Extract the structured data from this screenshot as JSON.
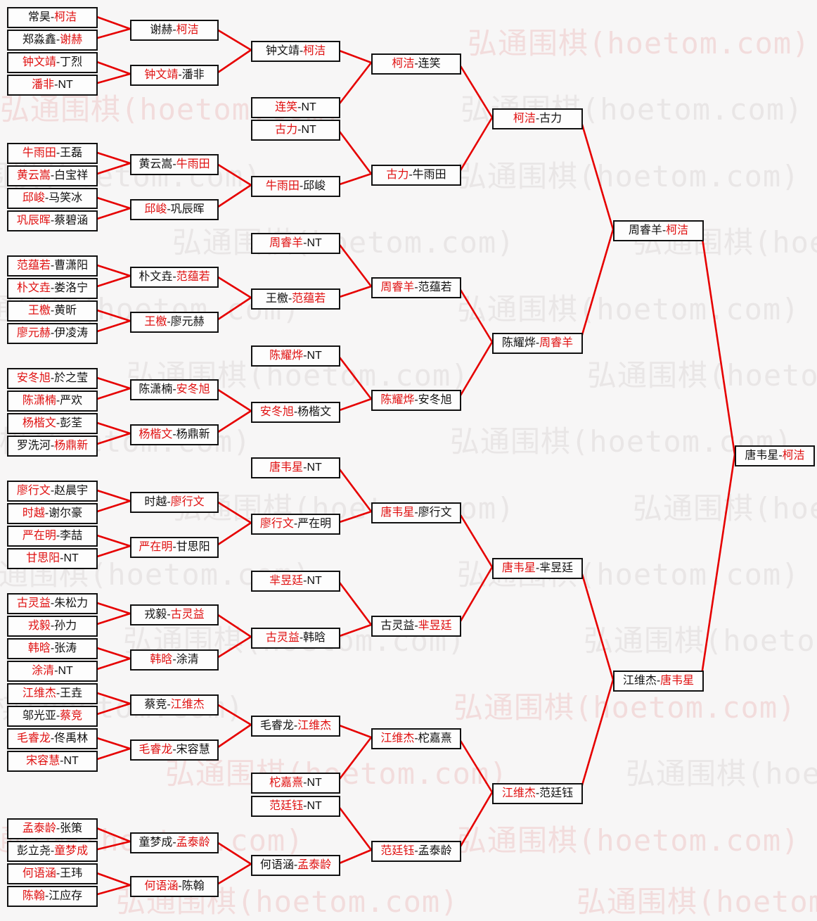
{
  "watermark": {
    "text": "弘通围棋(hoetom.com)",
    "color_gray": "#e9e6e6",
    "color_pink": "#f2dcdc"
  },
  "colors": {
    "winner_red": "#e01010",
    "line_red": "#e60000",
    "box_border": "#111111"
  },
  "bracket": {
    "rounds": [
      {
        "name": "round-1",
        "matches": [
          {
            "a": "常昊",
            "b": "柯洁",
            "red": "b"
          },
          {
            "a": "郑淼鑫",
            "b": "谢赫",
            "red": "b"
          },
          {
            "a": "钟文靖",
            "b": "丁烈",
            "red": "a"
          },
          {
            "a": "潘非",
            "b": "NT",
            "red": "a"
          },
          {
            "a": "牛雨田",
            "b": "王磊",
            "red": "a"
          },
          {
            "a": "黄云嵩",
            "b": "白宝祥",
            "red": "a"
          },
          {
            "a": "邱峻",
            "b": "马笑冰",
            "red": "a"
          },
          {
            "a": "巩辰晖",
            "b": "蔡碧涵",
            "red": "a"
          },
          {
            "a": "范蕴若",
            "b": "曹潇阳",
            "red": "a"
          },
          {
            "a": "朴文垚",
            "b": "娄洛宁",
            "red": "a"
          },
          {
            "a": "王檄",
            "b": "黄昕",
            "red": "a"
          },
          {
            "a": "廖元赫",
            "b": "伊凌涛",
            "red": "a"
          },
          {
            "a": "安冬旭",
            "b": "於之莹",
            "red": "a"
          },
          {
            "a": "陈潇楠",
            "b": "严欢",
            "red": "a"
          },
          {
            "a": "杨楷文",
            "b": "彭荃",
            "red": "a"
          },
          {
            "a": "罗洗河",
            "b": "杨鼎新",
            "red": "b"
          },
          {
            "a": "廖行文",
            "b": "赵晨宇",
            "red": "a"
          },
          {
            "a": "时越",
            "b": "谢尔豪",
            "red": "a"
          },
          {
            "a": "严在明",
            "b": "李喆",
            "red": "a"
          },
          {
            "a": "甘思阳",
            "b": "NT",
            "red": "a"
          },
          {
            "a": "古灵益",
            "b": "朱松力",
            "red": "a"
          },
          {
            "a": "戎毅",
            "b": "孙力",
            "red": "a"
          },
          {
            "a": "韩晗",
            "b": "张涛",
            "red": "a"
          },
          {
            "a": "涂清",
            "b": "NT",
            "red": "a"
          },
          {
            "a": "江维杰",
            "b": "王垚",
            "red": "a"
          },
          {
            "a": "邬光亚",
            "b": "蔡竞",
            "red": "b"
          },
          {
            "a": "毛睿龙",
            "b": "佟禹林",
            "red": "a"
          },
          {
            "a": "宋容慧",
            "b": "NT",
            "red": "a"
          },
          {
            "a": "孟泰龄",
            "b": "张策",
            "red": "a"
          },
          {
            "a": "彭立尧",
            "b": "童梦成",
            "red": "b"
          },
          {
            "a": "何语涵",
            "b": "王玮",
            "red": "a"
          },
          {
            "a": "陈翰",
            "b": "江应存",
            "red": "a"
          }
        ]
      },
      {
        "name": "round-2",
        "matches": [
          {
            "a": "谢赫",
            "b": "柯洁",
            "red": "b",
            "feeders": [
              0,
              1
            ]
          },
          {
            "a": "钟文靖",
            "b": "潘非",
            "red": "a",
            "feeders": [
              2,
              3
            ]
          },
          {
            "a": "黄云嵩",
            "b": "牛雨田",
            "red": "b",
            "feeders": [
              4,
              5
            ]
          },
          {
            "a": "邱峻",
            "b": "巩辰晖",
            "red": "a",
            "feeders": [
              6,
              7
            ]
          },
          {
            "a": "朴文垚",
            "b": "范蕴若",
            "red": "b",
            "feeders": [
              8,
              9
            ]
          },
          {
            "a": "王檄",
            "b": "廖元赫",
            "red": "a",
            "feeders": [
              10,
              11
            ]
          },
          {
            "a": "陈潇楠",
            "b": "安冬旭",
            "red": "b",
            "feeders": [
              12,
              13
            ]
          },
          {
            "a": "杨楷文",
            "b": "杨鼎新",
            "red": "a",
            "feeders": [
              14,
              15
            ]
          },
          {
            "a": "时越",
            "b": "廖行文",
            "red": "b",
            "feeders": [
              16,
              17
            ]
          },
          {
            "a": "严在明",
            "b": "甘思阳",
            "red": "a",
            "feeders": [
              18,
              19
            ]
          },
          {
            "a": "戎毅",
            "b": "古灵益",
            "red": "b",
            "feeders": [
              20,
              21
            ]
          },
          {
            "a": "韩晗",
            "b": "涂清",
            "red": "a",
            "feeders": [
              22,
              23
            ]
          },
          {
            "a": "蔡竞",
            "b": "江维杰",
            "red": "b",
            "feeders": [
              24,
              25
            ]
          },
          {
            "a": "毛睿龙",
            "b": "宋容慧",
            "red": "a",
            "feeders": [
              26,
              27
            ]
          },
          {
            "a": "童梦成",
            "b": "孟泰龄",
            "red": "b",
            "feeders": [
              28,
              29
            ]
          },
          {
            "a": "何语涵",
            "b": "陈翰",
            "red": "a",
            "feeders": [
              30,
              31
            ]
          }
        ]
      },
      {
        "name": "round-3",
        "matches": [
          {
            "a": "钟文靖",
            "b": "柯洁",
            "red": "b",
            "feeders": [
              0,
              1
            ]
          },
          {
            "a": "连笑",
            "b": "NT",
            "red": "a"
          },
          {
            "a": "古力",
            "b": "NT",
            "red": "a"
          },
          {
            "a": "牛雨田",
            "b": "邱峻",
            "red": "a",
            "feeders": [
              2,
              3
            ]
          },
          {
            "a": "周睿羊",
            "b": "NT",
            "red": "a"
          },
          {
            "a": "王檄",
            "b": "范蕴若",
            "red": "b",
            "feeders": [
              4,
              5
            ]
          },
          {
            "a": "陈耀烨",
            "b": "NT",
            "red": "a"
          },
          {
            "a": "安冬旭",
            "b": "杨楷文",
            "red": "a",
            "feeders": [
              6,
              7
            ]
          },
          {
            "a": "唐韦星",
            "b": "NT",
            "red": "a"
          },
          {
            "a": "廖行文",
            "b": "严在明",
            "red": "a",
            "feeders": [
              8,
              9
            ]
          },
          {
            "a": "芈昱廷",
            "b": "NT",
            "red": "a"
          },
          {
            "a": "古灵益",
            "b": "韩晗",
            "red": "a",
            "feeders": [
              10,
              11
            ]
          },
          {
            "a": "毛睿龙",
            "b": "江维杰",
            "red": "b",
            "feeders": [
              12,
              13
            ]
          },
          {
            "a": "柁嘉熹",
            "b": "NT",
            "red": "a"
          },
          {
            "a": "范廷钰",
            "b": "NT",
            "red": "a"
          },
          {
            "a": "何语涵",
            "b": "孟泰龄",
            "red": "b",
            "feeders": [
              14,
              15
            ]
          }
        ]
      },
      {
        "name": "round-4",
        "matches": [
          {
            "a": "柯洁",
            "b": "连笑",
            "red": "a",
            "feeders": [
              0,
              1
            ]
          },
          {
            "a": "古力",
            "b": "牛雨田",
            "red": "a",
            "feeders": [
              2,
              3
            ]
          },
          {
            "a": "周睿羊",
            "b": "范蕴若",
            "red": "a",
            "feeders": [
              4,
              5
            ]
          },
          {
            "a": "陈耀烨",
            "b": "安冬旭",
            "red": "a",
            "feeders": [
              6,
              7
            ]
          },
          {
            "a": "唐韦星",
            "b": "廖行文",
            "red": "a",
            "feeders": [
              8,
              9
            ]
          },
          {
            "a": "古灵益",
            "b": "芈昱廷",
            "red": "b",
            "feeders": [
              10,
              11
            ]
          },
          {
            "a": "江维杰",
            "b": "柁嘉熹",
            "red": "a",
            "feeders": [
              12,
              13
            ]
          },
          {
            "a": "范廷钰",
            "b": "孟泰龄",
            "red": "a",
            "feeders": [
              14,
              15
            ]
          }
        ]
      },
      {
        "name": "quarterfinals",
        "matches": [
          {
            "a": "柯洁",
            "b": "古力",
            "red": "a",
            "feeders": [
              0,
              1
            ]
          },
          {
            "a": "陈耀烨",
            "b": "周睿羊",
            "red": "b",
            "feeders": [
              2,
              3
            ]
          },
          {
            "a": "唐韦星",
            "b": "芈昱廷",
            "red": "a",
            "feeders": [
              4,
              5
            ]
          },
          {
            "a": "江维杰",
            "b": "范廷钰",
            "red": "a",
            "feeders": [
              6,
              7
            ]
          }
        ]
      },
      {
        "name": "semifinals",
        "matches": [
          {
            "a": "周睿羊",
            "b": "柯洁",
            "red": "b",
            "feeders": [
              0,
              1
            ]
          },
          {
            "a": "江维杰",
            "b": "唐韦星",
            "red": "b",
            "feeders": [
              2,
              3
            ]
          }
        ]
      },
      {
        "name": "final",
        "matches": [
          {
            "a": "唐韦星",
            "b": "柯洁",
            "red": "b",
            "feeders": [
              0,
              1
            ]
          }
        ]
      }
    ]
  }
}
